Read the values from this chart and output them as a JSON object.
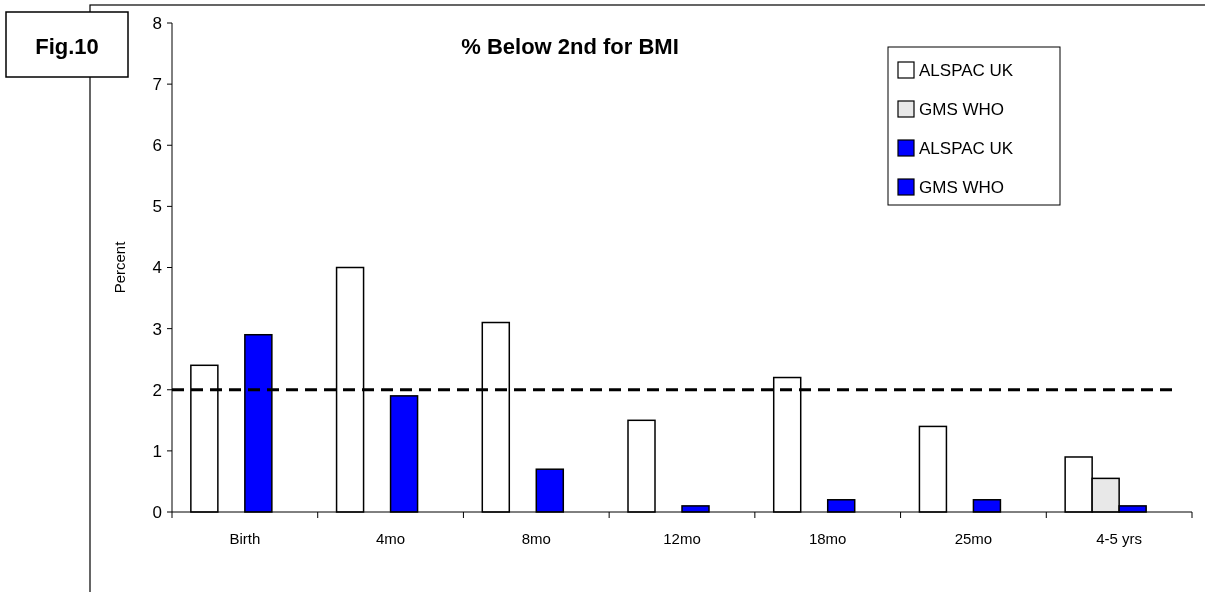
{
  "chart_data": {
    "type": "bar",
    "title": "% Below 2nd for BMI",
    "ylabel": "Percent",
    "annotations": [
      "Fig.10"
    ],
    "categories": [
      "Birth",
      "4mo",
      "8mo",
      "12mo",
      "18mo",
      "25mo",
      "4-5 yrs"
    ],
    "series": [
      {
        "name": "ALSPAC UK",
        "color": "#ffffff",
        "values": [
          2.4,
          4.0,
          3.1,
          1.5,
          2.2,
          1.4,
          0.9
        ]
      },
      {
        "name": "GMS WHO",
        "color": "#e8e8e8",
        "values": [
          null,
          null,
          null,
          null,
          null,
          null,
          0.55
        ]
      },
      {
        "name": "ALSPAC UK",
        "color": "#0000ff",
        "values": [
          2.9,
          1.9,
          0.7,
          0.1,
          0.2,
          0.2,
          0.1
        ]
      },
      {
        "name": "GMS WHO",
        "color": "#0000ff",
        "values": [
          null,
          null,
          null,
          null,
          null,
          null,
          null
        ]
      }
    ],
    "ylim": [
      0,
      8
    ],
    "yticks": [
      0,
      1,
      2,
      3,
      4,
      5,
      6,
      7,
      8
    ],
    "ref_lines": [
      {
        "axis": "y",
        "value": 2,
        "line_style": "dashed",
        "color": "#000000"
      }
    ],
    "legend": "top right",
    "grid": false
  }
}
